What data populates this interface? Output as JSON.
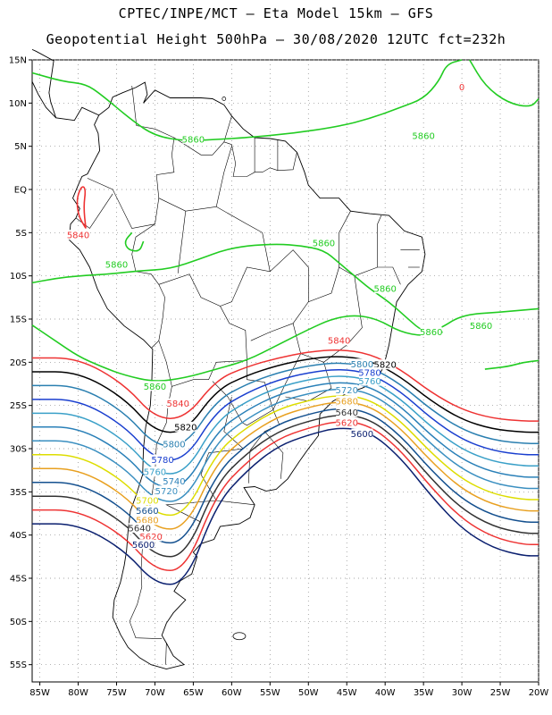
{
  "title": {
    "line1": "CPTEC/INPE/MCT –  Eta Model 15km – GFS",
    "line2": "Geopotential Height 500hPa – 30/08/2020 12UTC fct=232h"
  },
  "axes": {
    "lat_labels": [
      "15N",
      "10N",
      "5N",
      "EQ",
      "5S",
      "10S",
      "15S",
      "20S",
      "25S",
      "30S",
      "35S",
      "40S",
      "45S",
      "50S",
      "55S"
    ],
    "lon_labels": [
      "85W",
      "80W",
      "75W",
      "70W",
      "65W",
      "60W",
      "55W",
      "50W",
      "45W",
      "40W",
      "35W",
      "30W",
      "25W",
      "20W"
    ],
    "lat_range": [
      15,
      -57
    ],
    "lon_range": [
      -86,
      -20
    ],
    "grid": "dotted"
  },
  "colors": {
    "green": "#22cc22",
    "red": "#ee3333",
    "black": "#000000",
    "coast": "#000000"
  },
  "contours": [
    {
      "value": "5860",
      "color": "#22cc22",
      "labels": [
        {
          "text": "5860",
          "lon": -65,
          "lat": 5.8
        },
        {
          "text": "5860",
          "lon": -35,
          "lat": 6.2
        },
        {
          "text": "5860",
          "lon": -75,
          "lat": -8.7
        },
        {
          "text": "5860",
          "lon": -48,
          "lat": -6.2
        },
        {
          "text": "5860",
          "lon": -40,
          "lat": -11.5
        },
        {
          "text": "5860",
          "lon": -34,
          "lat": -16.5
        },
        {
          "text": "5860",
          "lon": -27.5,
          "lat": -15.8
        },
        {
          "text": "5860",
          "lon": -70,
          "lat": -22.8
        }
      ]
    },
    {
      "value": "5840",
      "color": "#ee3333",
      "labels": [
        {
          "text": "5840",
          "lon": -80,
          "lat": -5.3
        },
        {
          "text": "5840",
          "lon": -46,
          "lat": -17.5
        },
        {
          "text": "5840",
          "lon": -67,
          "lat": -24.8
        }
      ]
    },
    {
      "value": "5820",
      "color": "#000000",
      "labels": [
        {
          "text": "5820",
          "lon": -40,
          "lat": -20.3
        },
        {
          "text": "5820",
          "lon": -66,
          "lat": -27.5
        }
      ]
    },
    {
      "value": "5800",
      "color": "#2a7fb0",
      "labels": [
        {
          "text": "5800",
          "lon": -43,
          "lat": -20.2
        },
        {
          "text": "5800",
          "lon": -67.5,
          "lat": -29.5
        }
      ]
    },
    {
      "value": "5780",
      "color": "#1a3fcf",
      "labels": [
        {
          "text": "5780",
          "lon": -42,
          "lat": -21.2
        },
        {
          "text": "5780",
          "lon": -69,
          "lat": -31.3
        }
      ]
    },
    {
      "value": "5760",
      "color": "#3aa0c8",
      "labels": [
        {
          "text": "5760",
          "lon": -42,
          "lat": -22.2
        },
        {
          "text": "5760",
          "lon": -70,
          "lat": -32.7
        }
      ]
    },
    {
      "value": "5740",
      "color": "#2a80b8",
      "labels": [
        {
          "text": "5740",
          "lon": -67.5,
          "lat": -33.8
        }
      ]
    },
    {
      "value": "5720",
      "color": "#3a8fc0",
      "labels": [
        {
          "text": "5720",
          "lon": -45,
          "lat": -23.2
        },
        {
          "text": "5720",
          "lon": -68.5,
          "lat": -34.9
        }
      ]
    },
    {
      "value": "5700",
      "color": "#dddd00",
      "labels": [
        {
          "text": "5700",
          "lon": -71,
          "lat": -36.0
        }
      ]
    },
    {
      "value": "5680",
      "color": "#e8a020",
      "labels": [
        {
          "text": "5680",
          "lon": -45,
          "lat": -24.5
        },
        {
          "text": "5680",
          "lon": -71,
          "lat": -38.3
        }
      ]
    },
    {
      "value": "5660",
      "color": "#14508f",
      "labels": [
        {
          "text": "5660",
          "lon": -71,
          "lat": -37.2
        }
      ]
    },
    {
      "value": "5640",
      "color": "#333333",
      "labels": [
        {
          "text": "5640",
          "lon": -45,
          "lat": -25.8
        },
        {
          "text": "5640",
          "lon": -72,
          "lat": -39.2
        }
      ]
    },
    {
      "value": "5620",
      "color": "#ee3333",
      "labels": [
        {
          "text": "5620",
          "lon": -45,
          "lat": -27
        },
        {
          "text": "5620",
          "lon": -70.5,
          "lat": -40.2
        }
      ]
    },
    {
      "value": "5600",
      "color": "#0a1f6f",
      "labels": [
        {
          "text": "5600",
          "lon": -43,
          "lat": -28.3
        },
        {
          "text": "5600",
          "lon": -71.5,
          "lat": -41.1
        }
      ]
    }
  ],
  "isolated_marker": {
    "text": "0",
    "lon": -30,
    "lat": 11.5
  }
}
